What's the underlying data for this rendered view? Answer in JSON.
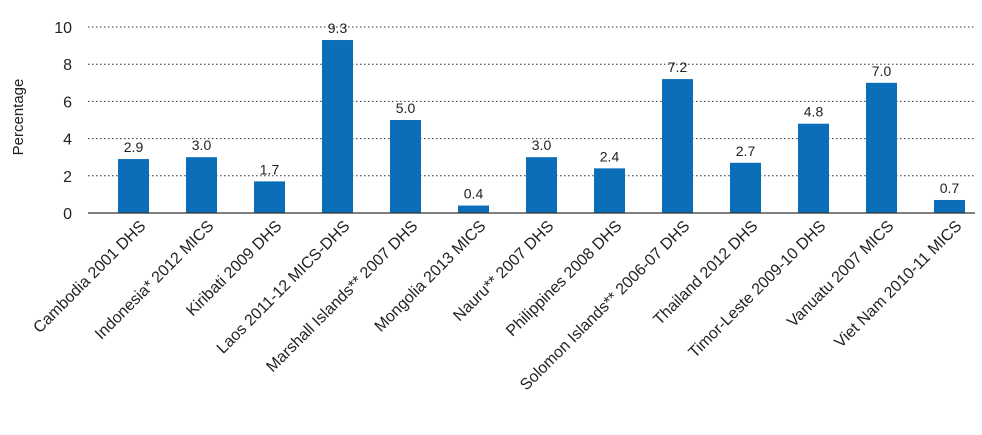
{
  "chart_data": {
    "type": "bar",
    "ylabel": "Percentage",
    "ylim": [
      0,
      10
    ],
    "yticks": [
      0,
      2,
      4,
      6,
      8,
      10
    ],
    "grid": true,
    "bar_color": "#0a6fb8",
    "categories": [
      "Cambodia 2001 DHS",
      "Indonesia* 2012 MICS",
      "Kiribati 2009 DHS",
      "Laos 2011-12 MICS-DHS",
      "Marshall Islands** 2007 DHS",
      "Mongolia 2013 MICS",
      "Nauru** 2007 DHS",
      "Philippines 2008 DHS",
      "Solomon Islands** 2006-07 DHS",
      "Thailand 2012 DHS",
      "Timor-Leste 2009-10 DHS",
      "Vanuatu 2007 MICS",
      "Viet Nam 2010-11 MICS"
    ],
    "values": [
      2.9,
      3.0,
      1.7,
      9.3,
      5.0,
      0.4,
      3.0,
      2.4,
      7.2,
      2.7,
      4.8,
      7.0,
      0.7
    ],
    "value_labels": [
      "2.9",
      "3.0",
      "1.7",
      "9.3",
      "5.0",
      "0.4",
      "3.0",
      "2.4",
      "7.2",
      "2.7",
      "4.8",
      "7.0",
      "0.7"
    ]
  }
}
